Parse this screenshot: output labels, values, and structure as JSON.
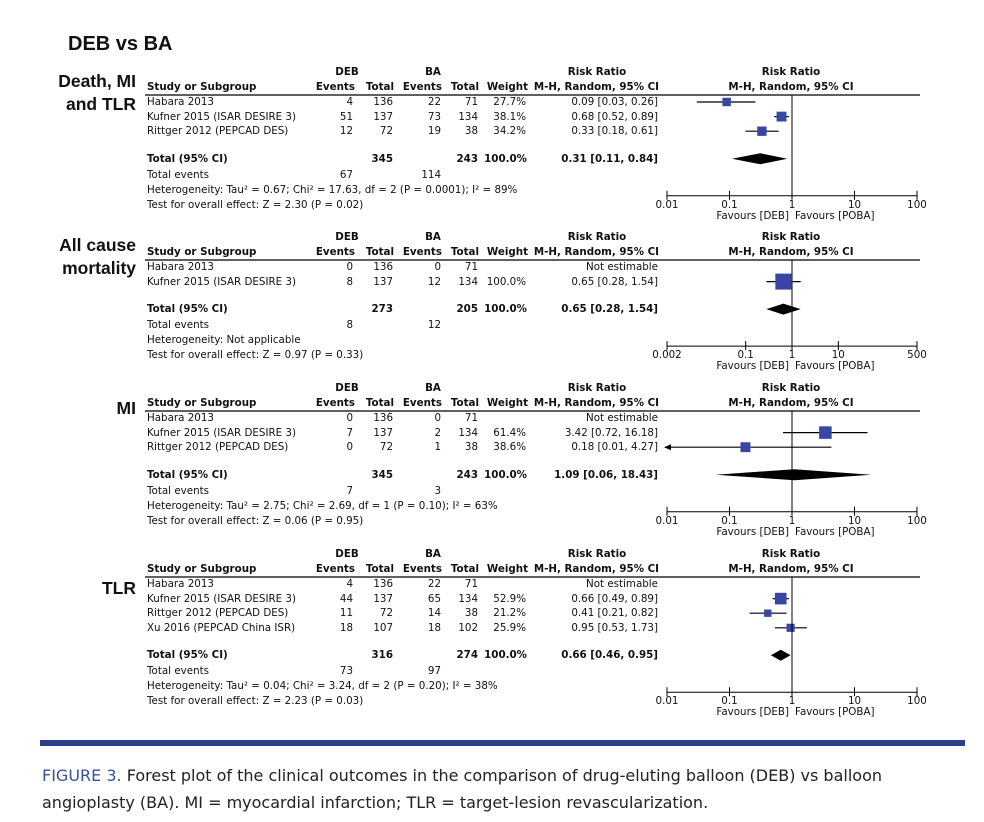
{
  "figure_title": "DEB vs BA",
  "colors": {
    "square": "#3a46a3",
    "diamond": "#000000",
    "rule_bar": "#2e3f8a",
    "caption_label": "#3a4f9a"
  },
  "caption": {
    "label": "FIGURE 3.",
    "text": " Forest plot of the clinical outcomes in the comparison of drug-eluting balloon (DEB) vs balloon angioplasty (BA). MI =  myocardial infarction; TLR = target-lesion revascularization."
  },
  "columns": {
    "group1": "DEB",
    "group2": "BA",
    "rr_head": "Risk Ratio",
    "study": "Study or Subgroup",
    "events": "Events",
    "total": "Total",
    "weight": "Weight",
    "rr_method": "M-H, Random, 95% CI",
    "plot_head": "Risk Ratio",
    "plot_method": "M-H, Random, 95% CI"
  },
  "chart_data": [
    {
      "type": "forest",
      "outcome": "Death, MI and TLR",
      "outcome_lines": [
        "Death, MI",
        "and TLR"
      ],
      "scale": "log",
      "xlim": [
        0.01,
        100
      ],
      "ticks": [
        "0.01",
        "0.1",
        "1",
        "10",
        "100"
      ],
      "favours_left": "Favours [DEB]",
      "favours_right": "Favours [POBA]",
      "studies": [
        {
          "name": "Habara 2013",
          "deb_events": "4",
          "deb_total": "136",
          "ba_events": "22",
          "ba_total": "71",
          "weight": "27.7%",
          "rr_text": "0.09 [0.03, 0.26]",
          "rr": 0.09,
          "lo": 0.03,
          "hi": 0.26,
          "w": 27.7
        },
        {
          "name": "Kufner 2015 (ISAR DESIRE 3)",
          "deb_events": "51",
          "deb_total": "137",
          "ba_events": "73",
          "ba_total": "134",
          "weight": "38.1%",
          "rr_text": "0.68 [0.52, 0.89]",
          "rr": 0.68,
          "lo": 0.52,
          "hi": 0.89,
          "w": 38.1
        },
        {
          "name": "Rittger 2012 (PEPCAD DES)",
          "deb_events": "12",
          "deb_total": "72",
          "ba_events": "19",
          "ba_total": "38",
          "weight": "34.2%",
          "rr_text": "0.33 [0.18, 0.61]",
          "rr": 0.33,
          "lo": 0.18,
          "hi": 0.61,
          "w": 34.2
        }
      ],
      "total": {
        "label": "Total (95% CI)",
        "deb_total": "345",
        "ba_total": "243",
        "weight": "100.0%",
        "rr_text": "0.31 [0.11, 0.84]",
        "rr": 0.31,
        "lo": 0.11,
        "hi": 0.84
      },
      "total_events": {
        "label": "Total events",
        "deb": "67",
        "ba": "114"
      },
      "heterogeneity": "Heterogeneity: Tau² = 0.67; Chi² = 17.63, df = 2 (P = 0.0001); I² = 89%",
      "overall_effect": "Test for overall effect: Z = 2.30 (P = 0.02)"
    },
    {
      "type": "forest",
      "outcome": "All cause mortality",
      "outcome_lines": [
        "All cause",
        "mortality"
      ],
      "scale": "log",
      "xlim": [
        0.002,
        500
      ],
      "ticks": [
        "0.002",
        "0.1",
        "1",
        "10",
        "500"
      ],
      "favours_left": "Favours [DEB]",
      "favours_right": "Favours [POBA]",
      "studies": [
        {
          "name": "Habara 2013",
          "deb_events": "0",
          "deb_total": "136",
          "ba_events": "0",
          "ba_total": "71",
          "weight": "",
          "rr_text": "Not estimable"
        },
        {
          "name": "Kufner 2015 (ISAR DESIRE 3)",
          "deb_events": "8",
          "deb_total": "137",
          "ba_events": "12",
          "ba_total": "134",
          "weight": "100.0%",
          "rr_text": "0.65 [0.28, 1.54]",
          "rr": 0.65,
          "lo": 0.28,
          "hi": 1.54,
          "w": 100
        }
      ],
      "total": {
        "label": "Total (95% CI)",
        "deb_total": "273",
        "ba_total": "205",
        "weight": "100.0%",
        "rr_text": "0.65 [0.28, 1.54]",
        "rr": 0.65,
        "lo": 0.28,
        "hi": 1.54
      },
      "total_events": {
        "label": "Total events",
        "deb": "8",
        "ba": "12"
      },
      "heterogeneity": "Heterogeneity: Not applicable",
      "overall_effect": "Test for overall effect: Z = 0.97 (P = 0.33)"
    },
    {
      "type": "forest",
      "outcome": "MI",
      "outcome_lines": [
        "MI"
      ],
      "scale": "log",
      "xlim": [
        0.01,
        100
      ],
      "ticks": [
        "0.01",
        "0.1",
        "1",
        "10",
        "100"
      ],
      "favours_left": "Favours [DEB]",
      "favours_right": "Favours [POBA]",
      "studies": [
        {
          "name": "Habara 2013",
          "deb_events": "0",
          "deb_total": "136",
          "ba_events": "0",
          "ba_total": "71",
          "weight": "",
          "rr_text": "Not estimable"
        },
        {
          "name": "Kufner 2015 (ISAR DESIRE 3)",
          "deb_events": "7",
          "deb_total": "137",
          "ba_events": "2",
          "ba_total": "134",
          "weight": "61.4%",
          "rr_text": "3.42 [0.72, 16.18]",
          "rr": 3.42,
          "lo": 0.72,
          "hi": 16.18,
          "w": 61.4
        },
        {
          "name": "Rittger 2012 (PEPCAD DES)",
          "deb_events": "0",
          "deb_total": "72",
          "ba_events": "1",
          "ba_total": "38",
          "weight": "38.6%",
          "rr_text": "0.18 [0.01, 4.27]",
          "rr": 0.18,
          "lo": 0.01,
          "hi": 4.27,
          "w": 38.6,
          "arrow_left": true
        }
      ],
      "total": {
        "label": "Total (95% CI)",
        "deb_total": "345",
        "ba_total": "243",
        "weight": "100.0%",
        "rr_text": "1.09 [0.06, 18.43]",
        "rr": 1.09,
        "lo": 0.06,
        "hi": 18.43
      },
      "total_events": {
        "label": "Total events",
        "deb": "7",
        "ba": "3"
      },
      "heterogeneity": "Heterogeneity: Tau² = 2.75; Chi² = 2.69, df = 1 (P = 0.10); I² = 63%",
      "overall_effect": "Test for overall effect: Z = 0.06 (P = 0.95)"
    },
    {
      "type": "forest",
      "outcome": "TLR",
      "outcome_lines": [
        "TLR"
      ],
      "scale": "log",
      "xlim": [
        0.01,
        100
      ],
      "ticks": [
        "0.01",
        "0.1",
        "1",
        "10",
        "100"
      ],
      "favours_left": "Favours [DEB]",
      "favours_right": "Favours [POBA]",
      "studies": [
        {
          "name": "Habara 2013",
          "deb_events": "4",
          "deb_total": "136",
          "ba_events": "22",
          "ba_total": "71",
          "weight": "",
          "rr_text": "Not estimable"
        },
        {
          "name": "Kufner 2015 (ISAR DESIRE 3)",
          "deb_events": "44",
          "deb_total": "137",
          "ba_events": "65",
          "ba_total": "134",
          "weight": "52.9%",
          "rr_text": "0.66 [0.49, 0.89]",
          "rr": 0.66,
          "lo": 0.49,
          "hi": 0.89,
          "w": 52.9
        },
        {
          "name": "Rittger 2012 (PEPCAD DES)",
          "deb_events": "11",
          "deb_total": "72",
          "ba_events": "14",
          "ba_total": "38",
          "weight": "21.2%",
          "rr_text": "0.41 [0.21, 0.82]",
          "rr": 0.41,
          "lo": 0.21,
          "hi": 0.82,
          "w": 21.2
        },
        {
          "name": "Xu 2016 (PEPCAD China ISR)",
          "deb_events": "18",
          "deb_total": "107",
          "ba_events": "18",
          "ba_total": "102",
          "weight": "25.9%",
          "rr_text": "0.95 [0.53, 1.73]",
          "rr": 0.95,
          "lo": 0.53,
          "hi": 1.73,
          "w": 25.9
        }
      ],
      "total": {
        "label": "Total (95% CI)",
        "deb_total": "316",
        "ba_total": "274",
        "weight": "100.0%",
        "rr_text": "0.66 [0.46, 0.95]",
        "rr": 0.66,
        "lo": 0.46,
        "hi": 0.95
      },
      "total_events": {
        "label": "Total events",
        "deb": "73",
        "ba": "97"
      },
      "heterogeneity": "Heterogeneity: Tau² = 0.04; Chi² = 3.24, df = 2 (P = 0.20); I² = 38%",
      "overall_effect": "Test for overall effect: Z = 2.23 (P = 0.03)"
    }
  ]
}
